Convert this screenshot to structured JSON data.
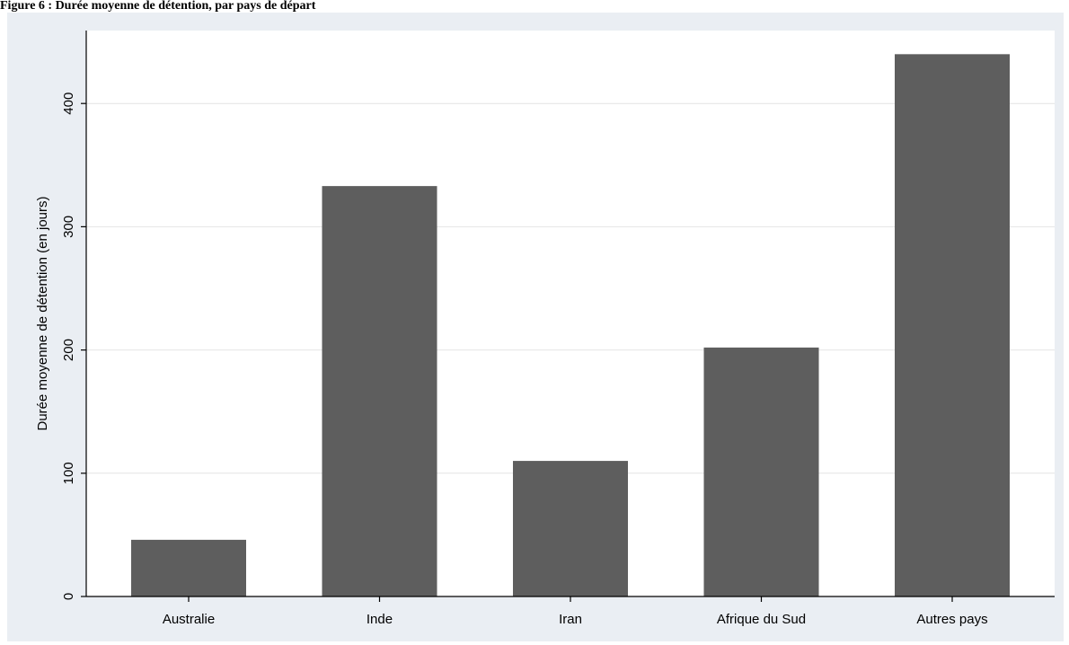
{
  "caption": "Figure 6 : Durée moyenne de détention, par pays de départ",
  "colors": {
    "bar": "#5e5e5e",
    "panel_background": "#eaeef3",
    "plot_background": "#ffffff",
    "grid": "#e4e4e4",
    "axis": "#000000"
  },
  "chart_data": {
    "type": "bar",
    "title": "",
    "xlabel": "",
    "ylabel": "Durée moyenne de détention (en jours)",
    "categories": [
      "Australie",
      "Inde",
      "Iran",
      "Afrique du Sud",
      "Autres pays"
    ],
    "values": [
      46,
      333,
      110,
      202,
      440
    ],
    "ylim": [
      0,
      460
    ],
    "yticks": [
      0,
      100,
      200,
      300,
      400
    ],
    "grid": true,
    "legend": "none"
  }
}
